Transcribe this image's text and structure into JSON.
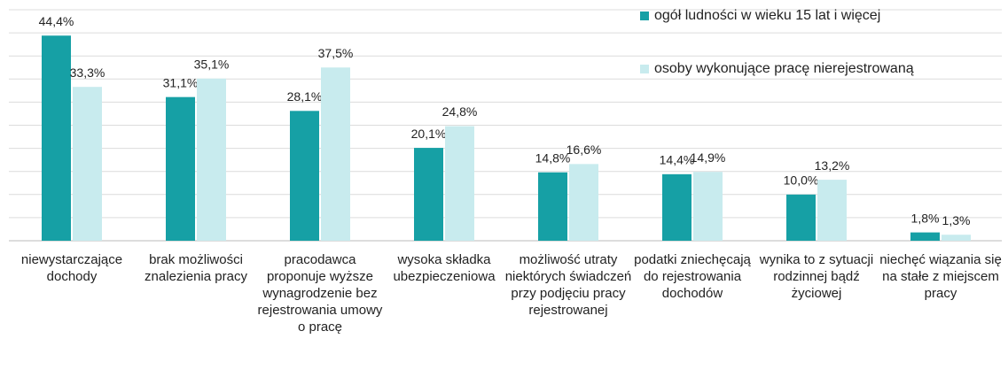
{
  "chart_data": {
    "type": "bar",
    "categories": [
      "niewystarczające dochody",
      "brak możliwości znalezienia pracy",
      "pracodawca proponuje wyższe wynagrodzenie bez rejestrowania umowy o pracę",
      "wysoka składka ubezpieczeniowa",
      "możliwość utraty niektórych świadczeń przy podjęciu pracy rejestrowanej",
      "podatki zniechęcają do rejestrowania dochodów",
      "wynika to z sytuacji rodzinnej bądź życiowej",
      "niechęć wiązania się na stałe z miejscem pracy"
    ],
    "series": [
      {
        "name": "ogół ludności w wieku 15 lat i więcej",
        "color": "#16a0a5",
        "values": [
          44.4,
          31.1,
          28.1,
          20.1,
          14.8,
          14.4,
          10.0,
          1.8
        ],
        "value_labels": [
          "44,4%",
          "31,1%",
          "28,1%",
          "20,1%",
          "14,8%",
          "14,4%",
          "10,0%",
          "1,8%"
        ]
      },
      {
        "name": "osoby wykonujące pracę nierejestrowaną",
        "color": "#c8ebee",
        "values": [
          33.3,
          35.1,
          37.5,
          24.8,
          16.6,
          14.9,
          13.2,
          1.3
        ],
        "value_labels": [
          "33,3%",
          "35,1%",
          "37,5%",
          "24,8%",
          "16,6%",
          "14,9%",
          "13,2%",
          "1,3%"
        ]
      }
    ],
    "ylim": [
      0,
      50
    ],
    "yticks": [
      0,
      5,
      10,
      15,
      20,
      25,
      30,
      35,
      40,
      45,
      50
    ],
    "grid": true,
    "legend": "top-right"
  }
}
